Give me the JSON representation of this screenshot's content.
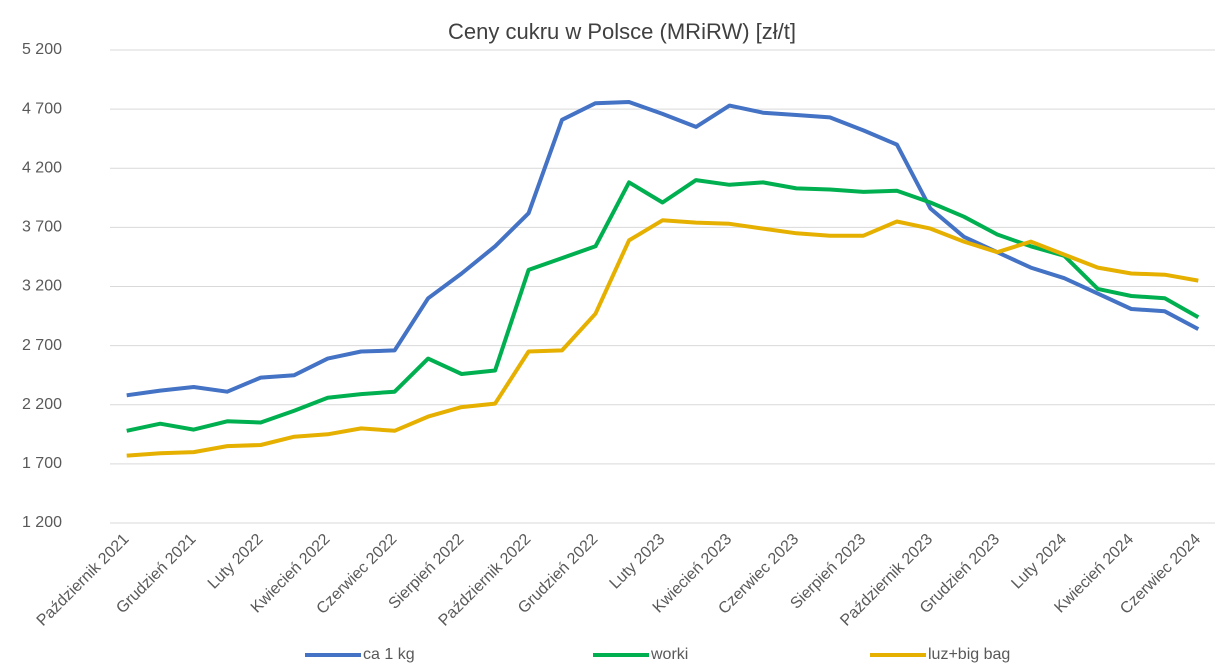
{
  "chart_data": {
    "type": "line",
    "title": "Ceny cukru w Polsce (MRiRW) [zł/t]",
    "categories": [
      "Październik 2021",
      null,
      "Grudzień 2021",
      null,
      "Luty 2022",
      null,
      "Kwiecień 2022",
      null,
      "Czerwiec 2022",
      null,
      "Sierpień 2022",
      null,
      "Październik 2022",
      null,
      "Grudzień 2022",
      null,
      "Luty 2023",
      null,
      "Kwiecień 2023",
      null,
      "Czerwiec 2023",
      null,
      "Sierpień 2023",
      null,
      "Październik 2023",
      null,
      "Grudzień 2023",
      null,
      "Luty 2024",
      null,
      "Kwiecień 2024",
      null,
      "Czerwiec 2024"
    ],
    "series": [
      {
        "name": "ca 1 kg",
        "color": "#4472c4",
        "values": [
          2280,
          2320,
          2350,
          2310,
          2430,
          2450,
          2590,
          2650,
          2660,
          3100,
          3310,
          3540,
          3820,
          4610,
          4750,
          4760,
          4660,
          4550,
          4730,
          4670,
          4650,
          4630,
          4520,
          4400,
          3860,
          3620,
          3490,
          3360,
          3270,
          3140,
          3010,
          2990,
          2840
        ]
      },
      {
        "name": "worki",
        "color": "#00b050",
        "values": [
          1980,
          2040,
          1990,
          2060,
          2050,
          2150,
          2260,
          2290,
          2310,
          2590,
          2460,
          2490,
          3340,
          3440,
          3540,
          4080,
          3910,
          4100,
          4060,
          4080,
          4030,
          4020,
          4000,
          4010,
          3910,
          3790,
          3640,
          3540,
          3460,
          3180,
          3120,
          3100,
          2940
        ]
      },
      {
        "name": "luz+big bag",
        "color": "#e6b000",
        "values": [
          1770,
          1790,
          1800,
          1850,
          1860,
          1930,
          1950,
          2000,
          1980,
          2100,
          2180,
          2210,
          2650,
          2660,
          2970,
          3590,
          3760,
          3740,
          3730,
          3690,
          3650,
          3630,
          3630,
          3750,
          3690,
          3580,
          3490,
          3580,
          3470,
          3360,
          3310,
          3300,
          3250
        ]
      }
    ],
    "ylim": [
      1200,
      5200
    ],
    "yticks": [
      {
        "value": 1200,
        "label": "1 200"
      },
      {
        "value": 1700,
        "label": "1 700"
      },
      {
        "value": 2200,
        "label": "2 200"
      },
      {
        "value": 2700,
        "label": "2 700"
      },
      {
        "value": 3200,
        "label": "3 200"
      },
      {
        "value": 3700,
        "label": "3 700"
      },
      {
        "value": 4200,
        "label": "4 200"
      },
      {
        "value": 4700,
        "label": "4 700"
      },
      {
        "value": 5200,
        "label": "5 200"
      }
    ],
    "grid": true,
    "legend": "bottom"
  }
}
